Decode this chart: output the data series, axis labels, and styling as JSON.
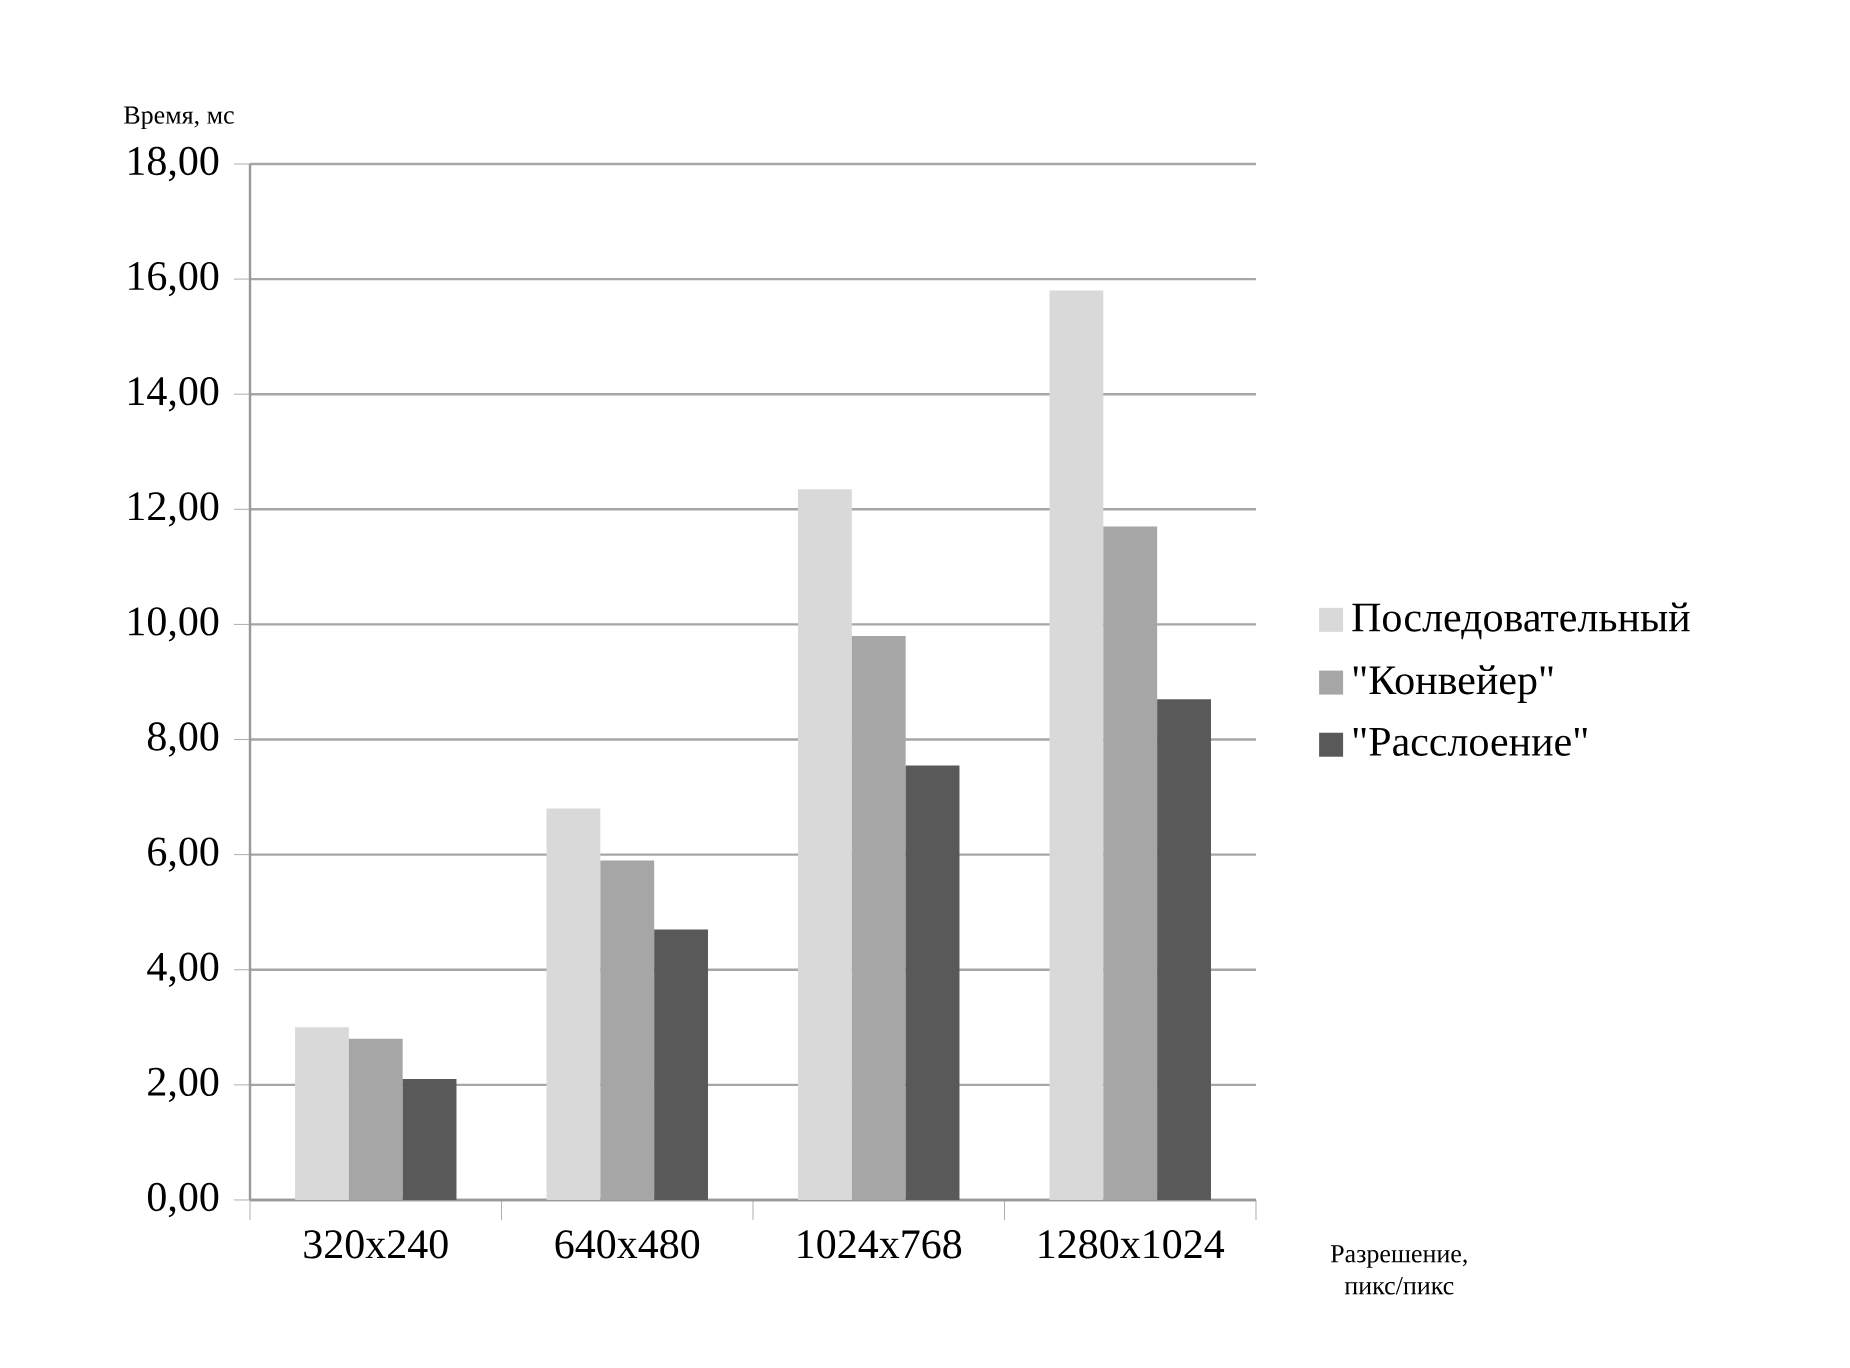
{
  "chart_data": {
    "type": "bar",
    "xlabel": "Разрешение, пикс/пикс",
    "ylabel": "Время, мс",
    "categories": [
      "320x240",
      "640x480",
      "1024x768",
      "1280x1024"
    ],
    "series": [
      {
        "name": "Последовательный",
        "color": "#d9d9d9",
        "values": [
          3.0,
          6.8,
          12.35,
          15.8
        ]
      },
      {
        "name": "\"Конвейер\"",
        "color": "#a6a6a6",
        "values": [
          2.8,
          5.9,
          9.8,
          11.7
        ]
      },
      {
        "name": "\"Расслоение\"",
        "color": "#595959",
        "values": [
          2.1,
          4.7,
          7.55,
          8.7
        ]
      }
    ],
    "ylim": [
      0,
      18
    ],
    "yticks": [
      {
        "value": 0,
        "label": "0,00"
      },
      {
        "value": 2,
        "label": "2,00"
      },
      {
        "value": 4,
        "label": "4,00"
      },
      {
        "value": 6,
        "label": "6,00"
      },
      {
        "value": 8,
        "label": "8,00"
      },
      {
        "value": 10,
        "label": "10,00"
      },
      {
        "value": 12,
        "label": "12,00"
      },
      {
        "value": 14,
        "label": "14,00"
      },
      {
        "value": 16,
        "label": "16,00"
      },
      {
        "value": 18,
        "label": "18,00"
      }
    ],
    "grid": "y",
    "legend": "right"
  }
}
